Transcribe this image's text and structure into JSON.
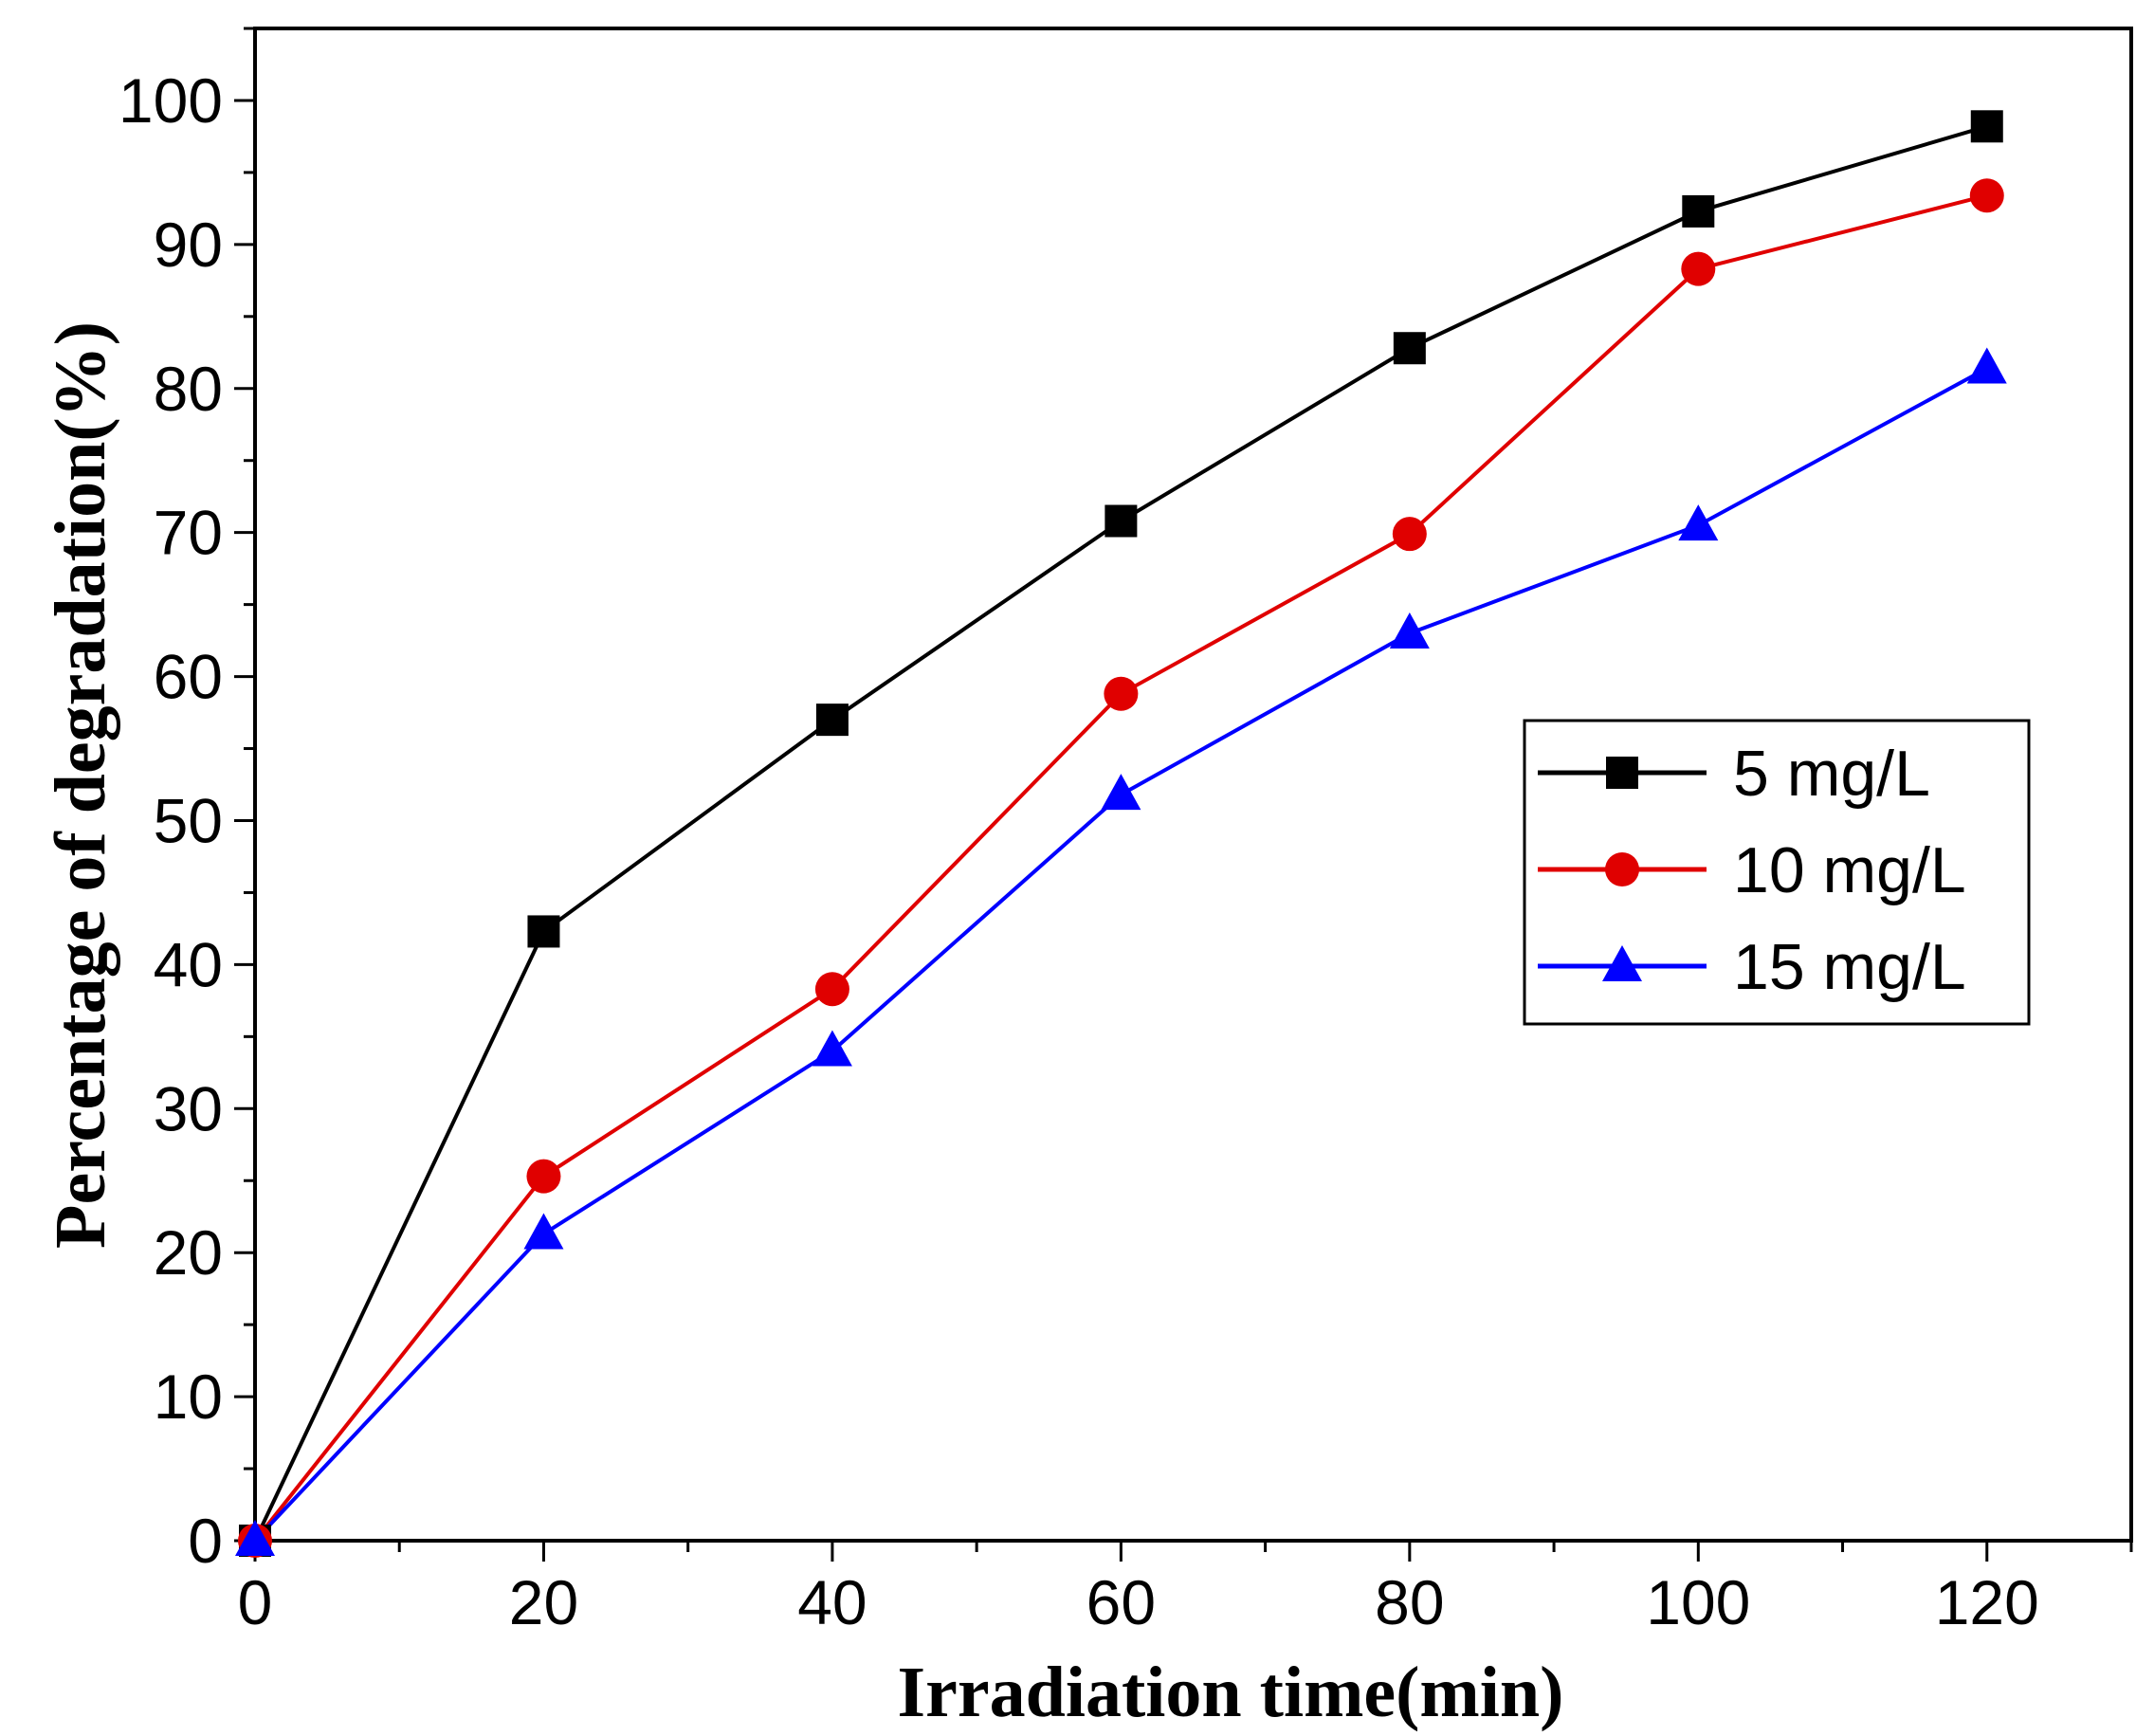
{
  "chart_data": {
    "type": "line",
    "title": "",
    "xlabel": "Irradiation time(min)",
    "ylabel": "Percentage of degradation(%)",
    "xlim": [
      0,
      130
    ],
    "ylim": [
      0,
      105
    ],
    "xticks": [
      0,
      20,
      40,
      60,
      80,
      100,
      120
    ],
    "yticks": [
      0,
      10,
      20,
      30,
      40,
      50,
      60,
      70,
      80,
      90,
      100
    ],
    "x": [
      0,
      20,
      40,
      60,
      80,
      100,
      120
    ],
    "legend_position": "center-right",
    "series": [
      {
        "name": "5 mg/L",
        "color": "#000000",
        "marker": "square",
        "values": [
          0,
          42.3,
          57.0,
          70.8,
          82.8,
          92.3,
          98.2
        ]
      },
      {
        "name": "10 mg/L",
        "color": "#e00000",
        "marker": "circle",
        "values": [
          0,
          25.3,
          38.3,
          58.8,
          69.9,
          88.3,
          93.4
        ]
      },
      {
        "name": "15 mg/L",
        "color": "#0000ff",
        "marker": "triangle",
        "values": [
          0,
          21.3,
          34.0,
          51.8,
          63.0,
          70.5,
          81.4
        ]
      }
    ]
  }
}
